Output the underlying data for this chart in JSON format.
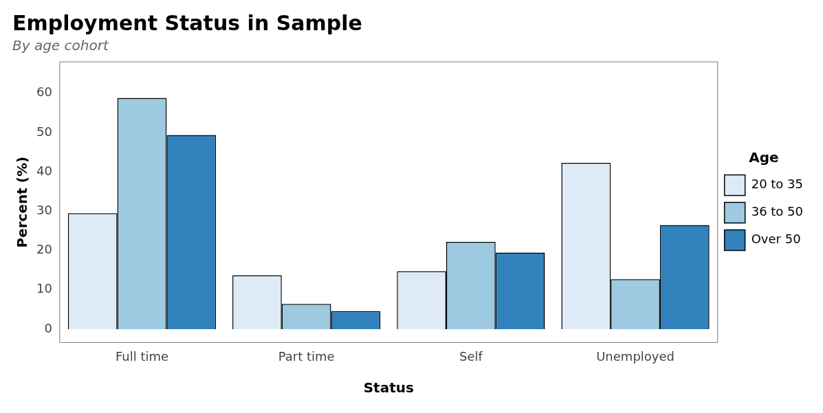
{
  "chart_data": {
    "type": "bar",
    "title": "Employment Status in Sample",
    "subtitle": "By age cohort",
    "xlabel": "Status",
    "ylabel": "Percent (%)",
    "legend_title": "Age",
    "categories": [
      "Full time",
      "Part time",
      "Self",
      "Unemployed"
    ],
    "series": [
      {
        "name": "20 to 35",
        "color": "#deebf7",
        "values": [
          29.5,
          13.7,
          14.7,
          42.3
        ]
      },
      {
        "name": "36 to 50",
        "color": "#9ecae1",
        "values": [
          58.8,
          6.4,
          22.2,
          12.7
        ]
      },
      {
        "name": "Over 50",
        "color": "#3182bd",
        "values": [
          49.4,
          4.6,
          19.5,
          26.5
        ]
      }
    ],
    "ylim": [
      -3.4,
      68
    ],
    "yticks": [
      0,
      10,
      20,
      30,
      40,
      50,
      60
    ],
    "grid": false,
    "legend": "right"
  }
}
